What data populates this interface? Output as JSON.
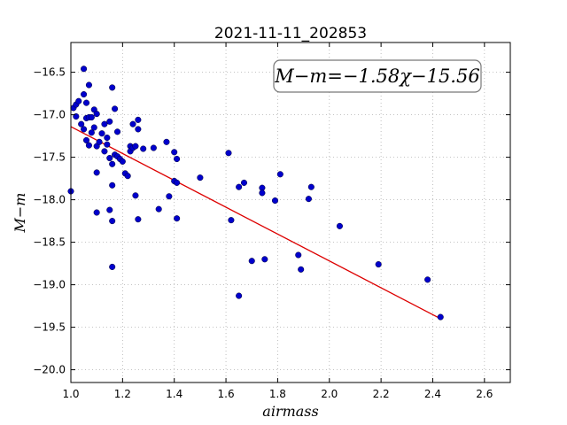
{
  "chart_data": {
    "type": "scatter",
    "title": "2021-11-11_202853",
    "xlabel": "airmass",
    "ylabel": "M−m",
    "xlim": [
      1.0,
      2.7
    ],
    "ylim": [
      -16.15,
      -20.15
    ],
    "y_inverted": true,
    "grid": true,
    "x_ticks": [
      "1.0",
      "1.2",
      "1.4",
      "1.6",
      "1.8",
      "2.0",
      "2.2",
      "2.4",
      "2.6"
    ],
    "y_ticks": [
      "−16.5",
      "−17.0",
      "−17.5",
      "−18.0",
      "−18.5",
      "−19.0",
      "−19.5",
      "−20.0"
    ],
    "annotation": "M−m=−1.58χ−15.56",
    "point_color": "#0000cc",
    "fit_color": "#dd0000",
    "fit": {
      "slope": -1.58,
      "intercept": -15.56,
      "x_range": [
        1.0,
        2.43
      ]
    },
    "x": [
      1.0,
      1.01,
      1.02,
      1.02,
      1.03,
      1.04,
      1.05,
      1.05,
      1.05,
      1.06,
      1.06,
      1.07,
      1.06,
      1.07,
      1.07,
      1.08,
      1.08,
      1.09,
      1.09,
      1.1,
      1.1,
      1.1,
      1.11,
      1.12,
      1.13,
      1.14,
      1.15,
      1.15,
      1.15,
      1.16,
      1.16,
      1.17,
      1.17,
      1.18,
      1.18,
      1.19,
      1.2,
      1.21,
      1.22,
      1.23,
      1.23,
      1.24,
      1.24,
      1.25,
      1.25,
      1.26,
      1.26,
      1.26,
      1.28,
      1.32,
      1.34,
      1.37,
      1.38,
      1.4,
      1.41,
      1.4,
      1.41,
      1.41,
      1.5,
      1.61,
      1.62,
      1.65,
      1.67,
      1.65,
      1.7,
      1.74,
      1.74,
      1.75,
      1.79,
      1.81,
      1.88,
      1.89,
      1.92,
      1.93,
      2.04,
      2.19,
      2.38,
      2.43,
      1.16,
      1.1,
      1.14,
      1.16,
      1.16,
      1.13
    ],
    "y": [
      -17.9,
      -16.92,
      -17.02,
      -16.88,
      -16.84,
      -17.11,
      -16.46,
      -16.76,
      -17.17,
      -17.04,
      -17.3,
      -16.65,
      -16.86,
      -17.03,
      -17.36,
      -17.03,
      -17.21,
      -16.94,
      -17.15,
      -17.37,
      -17.68,
      -18.15,
      -17.32,
      -17.22,
      -17.11,
      -17.35,
      -17.08,
      -17.51,
      -18.12,
      -16.68,
      -17.83,
      -16.93,
      -17.47,
      -17.49,
      -17.2,
      -17.52,
      -17.55,
      -17.69,
      -17.72,
      -17.37,
      -17.43,
      -17.39,
      -17.11,
      -17.37,
      -17.95,
      -17.06,
      -17.17,
      -18.23,
      -17.4,
      -17.39,
      -18.11,
      -17.32,
      -17.96,
      -17.44,
      -17.52,
      -17.78,
      -17.8,
      -18.22,
      -17.74,
      -17.45,
      -18.24,
      -17.85,
      -17.8,
      -19.13,
      -18.72,
      -17.86,
      -17.92,
      -18.7,
      -18.01,
      -17.7,
      -18.65,
      -18.82,
      -17.99,
      -17.85,
      -18.31,
      -18.76,
      -18.94,
      -19.38,
      -18.79,
      -16.99,
      -17.27,
      -17.58,
      -18.25,
      -17.43
    ]
  }
}
